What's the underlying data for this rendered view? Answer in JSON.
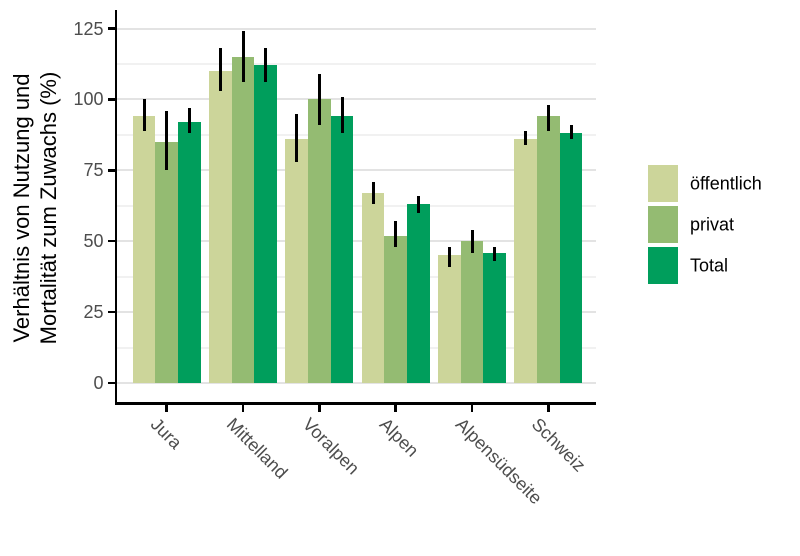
{
  "chart_data": {
    "type": "bar",
    "title": "",
    "ylabel_lines": [
      "Verhältnis von Nutzung und",
      "Mortalität zum Zuwachs (%)"
    ],
    "categories": [
      "Jura",
      "Mittelland",
      "Voralpen",
      "Alpen",
      "Alpensüdseite",
      "Schweiz"
    ],
    "series": [
      {
        "name": "öffentlich",
        "color": "#ccd59a",
        "values": [
          94,
          110,
          86,
          67,
          45,
          86
        ],
        "err_low": [
          89,
          103,
          78,
          63,
          41,
          84
        ],
        "err_high": [
          100,
          118,
          95,
          71,
          48,
          89
        ]
      },
      {
        "name": "privat",
        "color": "#94bb72",
        "values": [
          85,
          115,
          100,
          52,
          50,
          94
        ],
        "err_low": [
          75,
          106,
          91,
          48,
          46,
          89
        ],
        "err_high": [
          96,
          124,
          109,
          57,
          54,
          98
        ]
      },
      {
        "name": "Total",
        "color": "#009e5c",
        "values": [
          92,
          112,
          94,
          63,
          46,
          88
        ],
        "err_low": [
          88,
          106,
          88,
          60,
          43,
          86
        ],
        "err_high": [
          97,
          118,
          101,
          66,
          48,
          91
        ]
      }
    ],
    "yticks": [
      0,
      25,
      50,
      75,
      100,
      125
    ],
    "ylim": [
      0,
      125
    ],
    "minor_tick_step": 12.5,
    "grid": true,
    "error_bars": true,
    "legend_position": "right",
    "colors": {
      "axis_text": "#4d4d4d",
      "axis_line": "#000000",
      "grid_major": "#e3e3e3",
      "grid_minor": "#f1f1f1",
      "errorbar": "#000000",
      "background": "#ffffff"
    }
  }
}
